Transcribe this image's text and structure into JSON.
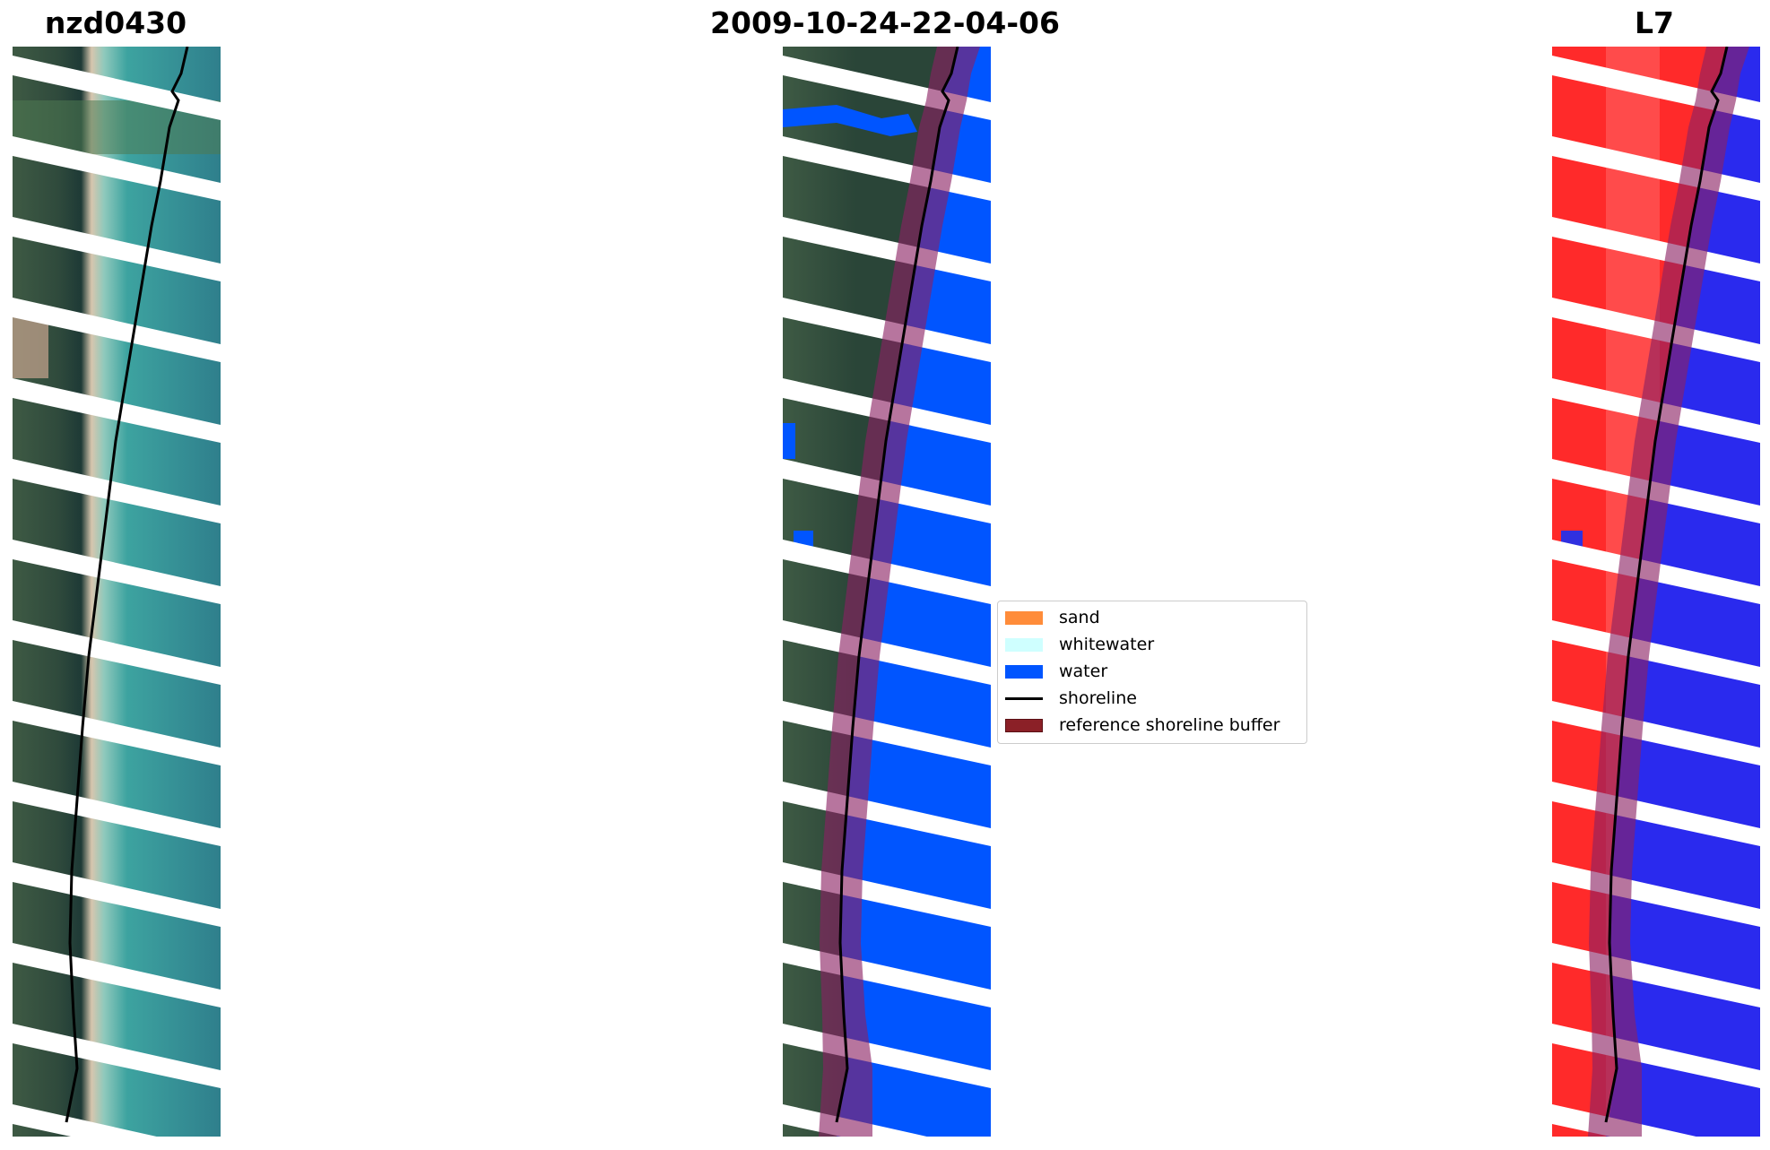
{
  "panels": [
    {
      "title": "nzd0430"
    },
    {
      "title": "2009-10-24-22-04-06"
    },
    {
      "title": "L7"
    }
  ],
  "legend": {
    "items": [
      {
        "label": "sand",
        "color": "#ff8c3a"
      },
      {
        "label": "whitewater",
        "color": "#cfffff"
      },
      {
        "label": "water",
        "color": "#0055ff"
      },
      {
        "label": "shoreline",
        "color": "#000000"
      },
      {
        "label": "reference shoreline buffer",
        "color": "#8b2027"
      }
    ]
  }
}
